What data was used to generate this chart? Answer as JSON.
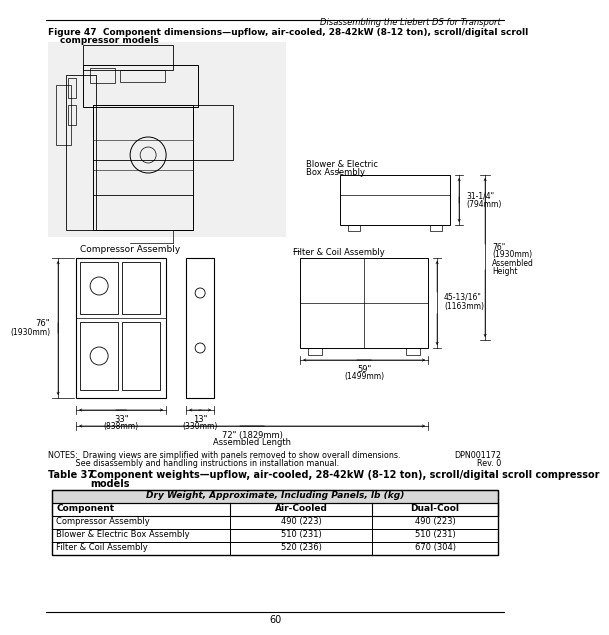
{
  "page_header": "Disassembling the Liebert DS for Transport",
  "figure_label": "Figure 47",
  "figure_title": "Component dimensions—upflow, air-cooled, 28-42kW (8-12 ton), scroll/digital scroll",
  "figure_title2": "compressor models",
  "notes_line1": "NOTES:  Drawing views are simplified with panels removed to show overall dimensions.",
  "notes_line2": "           See disassembly and handling instructions in installation manual.",
  "notes_right1": "DPN001172",
  "notes_right2": "Rev. 0",
  "table_label": "Table 37",
  "table_title": "Component weights—upflow, air-cooled, 28-42kW (8-12 ton), scroll/digital scroll compressor",
  "table_title2": "models",
  "table_header_span": "Dry Weight, Approximate, Including Panels, lb (kg)",
  "col_headers": [
    "Component",
    "Air-Cooled",
    "Dual-Cool"
  ],
  "rows": [
    [
      "Compressor Assembly",
      "490 (223)",
      "490 (223)"
    ],
    [
      "Blower & Electric Box Assembly",
      "510 (231)",
      "510 (231)"
    ],
    [
      "Filter & Coil Assembly",
      "520 (236)",
      "670 (304)"
    ]
  ],
  "label_compressor_assembly": "Compressor Assembly",
  "label_blower": "Blower & Electric",
  "label_blower2": "Box Assembly",
  "label_filter": "Filter & Coil Assembly",
  "dim_76in": "76\"",
  "dim_1930mm": "(1930mm)",
  "dim_33in": "33\"",
  "dim_838mm": "(838mm)",
  "dim_13in": "13\"",
  "dim_330mm": "(330mm)",
  "dim_31in": "31-1/4\"",
  "dim_794mm": "(794mm)",
  "dim_76in_assembled": "76\"",
  "dim_1930mm_assembled": "(1930mm)",
  "dim_assembled_height": "Assembled",
  "dim_assembled_height2": "Height",
  "dim_45in": "45-13/16\"",
  "dim_1163mm": "(1163mm)",
  "dim_59in": "59\"",
  "dim_1499mm": "(1499mm)",
  "dim_72in": "72\" (1829mm)",
  "dim_assembled_length": "Assembled Length",
  "page_number": "60",
  "bg_color": "#ffffff"
}
